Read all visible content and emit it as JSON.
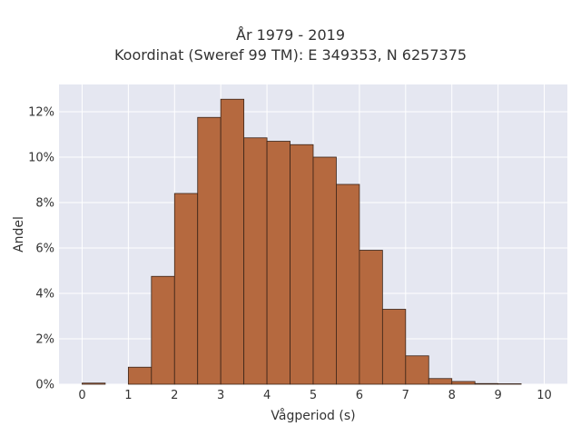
{
  "chart_data": {
    "type": "bar",
    "title_lines": [
      "År 1979 - 2019",
      "Koordinat (Sweref 99 TM): E 349353, N 6257375"
    ],
    "xlabel": "Vågperiod (s)",
    "ylabel": "Andel",
    "bin_width": 0.5,
    "bin_starts": [
      0,
      0.5,
      1,
      1.5,
      2,
      2.5,
      3,
      3.5,
      4,
      4.5,
      5,
      5.5,
      6,
      6.5,
      7,
      7.5,
      8,
      8.5,
      9,
      9.5
    ],
    "values": [
      0.05,
      0,
      0.75,
      4.75,
      8.4,
      11.75,
      12.55,
      10.85,
      10.7,
      10.55,
      10.0,
      8.8,
      5.9,
      3.3,
      1.25,
      0.25,
      0.12,
      0.03,
      0.02,
      0
    ],
    "x_ticks": [
      0,
      1,
      2,
      3,
      4,
      5,
      6,
      7,
      8,
      9,
      10
    ],
    "y_ticks": [
      0,
      2,
      4,
      6,
      8,
      10,
      12
    ],
    "y_tick_labels": [
      "0%",
      "2%",
      "4%",
      "6%",
      "8%",
      "10%",
      "12%"
    ],
    "xlim": [
      -0.5,
      10.5
    ],
    "ylim": [
      0,
      13.2
    ],
    "grid": true,
    "colors": {
      "bar_fill": "#b5693f",
      "bar_stroke": "#3a2418",
      "plot_bg": "#e5e7f1",
      "grid": "#ffffff"
    }
  }
}
